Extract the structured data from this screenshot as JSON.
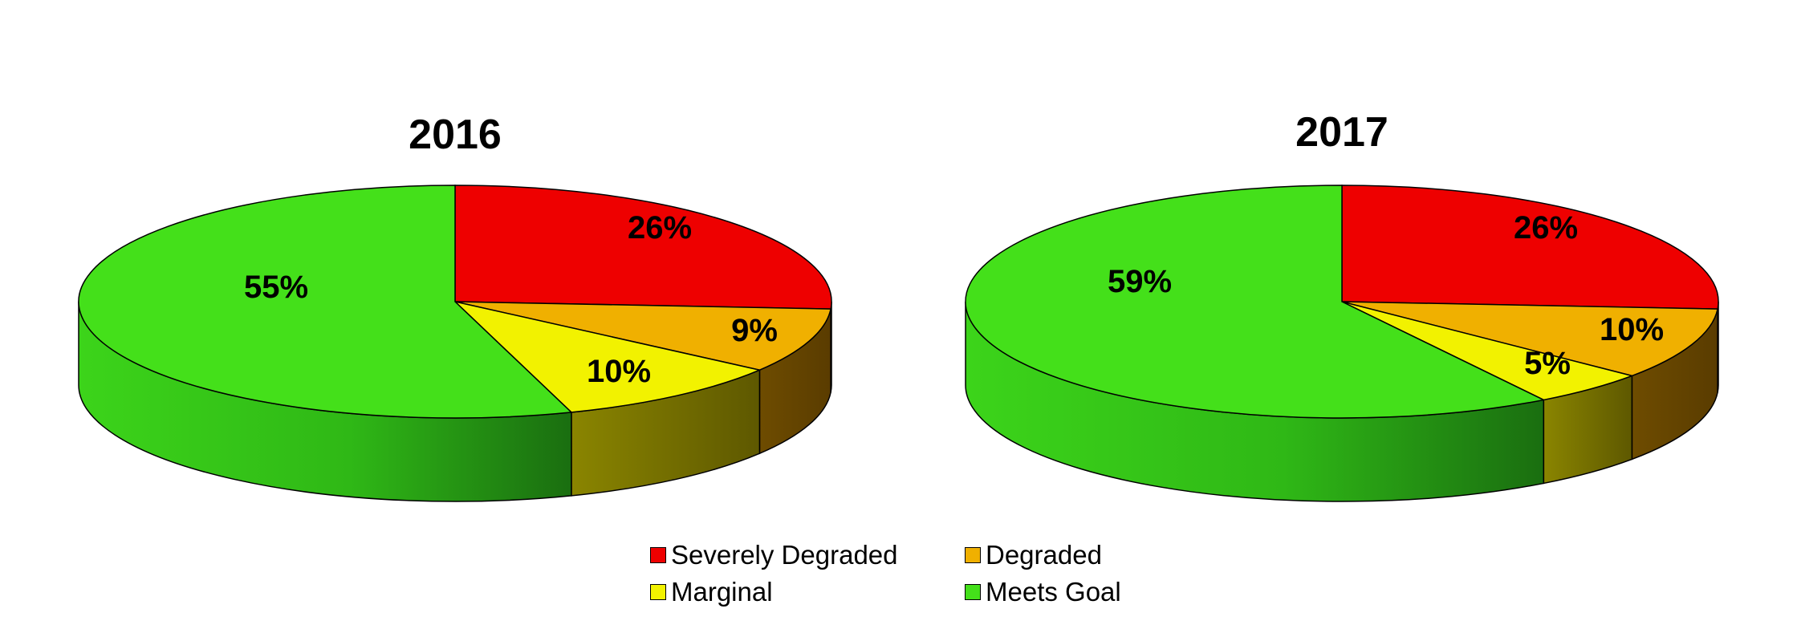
{
  "chart_data": [
    {
      "type": "pie",
      "title": "2016",
      "slices": [
        {
          "label": "Severely Degraded",
          "value": 26,
          "display": "26%"
        },
        {
          "label": "Degraded",
          "value": 9,
          "display": "9%"
        },
        {
          "label": "Marginal",
          "value": 10,
          "display": "10%"
        },
        {
          "label": "Meets Goal",
          "value": 55,
          "display": "55%"
        }
      ]
    },
    {
      "type": "pie",
      "title": "2017",
      "slices": [
        {
          "label": "Severely Degraded",
          "value": 26,
          "display": "26%"
        },
        {
          "label": "Degraded",
          "value": 10,
          "display": "10%"
        },
        {
          "label": "Marginal",
          "value": 5,
          "display": "5%"
        },
        {
          "label": "Meets Goal",
          "value": 59,
          "display": "59%"
        }
      ]
    }
  ],
  "legend": [
    {
      "label": "Severely Degraded",
      "color": "#ee0000"
    },
    {
      "label": "Degraded",
      "color": "#f0b000"
    },
    {
      "label": "Marginal",
      "color": "#f2f200"
    },
    {
      "label": "Meets Goal",
      "color": "#44e01a"
    }
  ],
  "colors": {
    "Severely Degraded": {
      "top": "#ee0000",
      "side": "#6a4400"
    },
    "Degraded": {
      "top": "#f0b000",
      "side": "#6a4400"
    },
    "Marginal": {
      "top": "#f2f200",
      "side": "#7a7000"
    },
    "Meets Goal": {
      "top": "#44e01a",
      "side": "#2aa014"
    }
  }
}
